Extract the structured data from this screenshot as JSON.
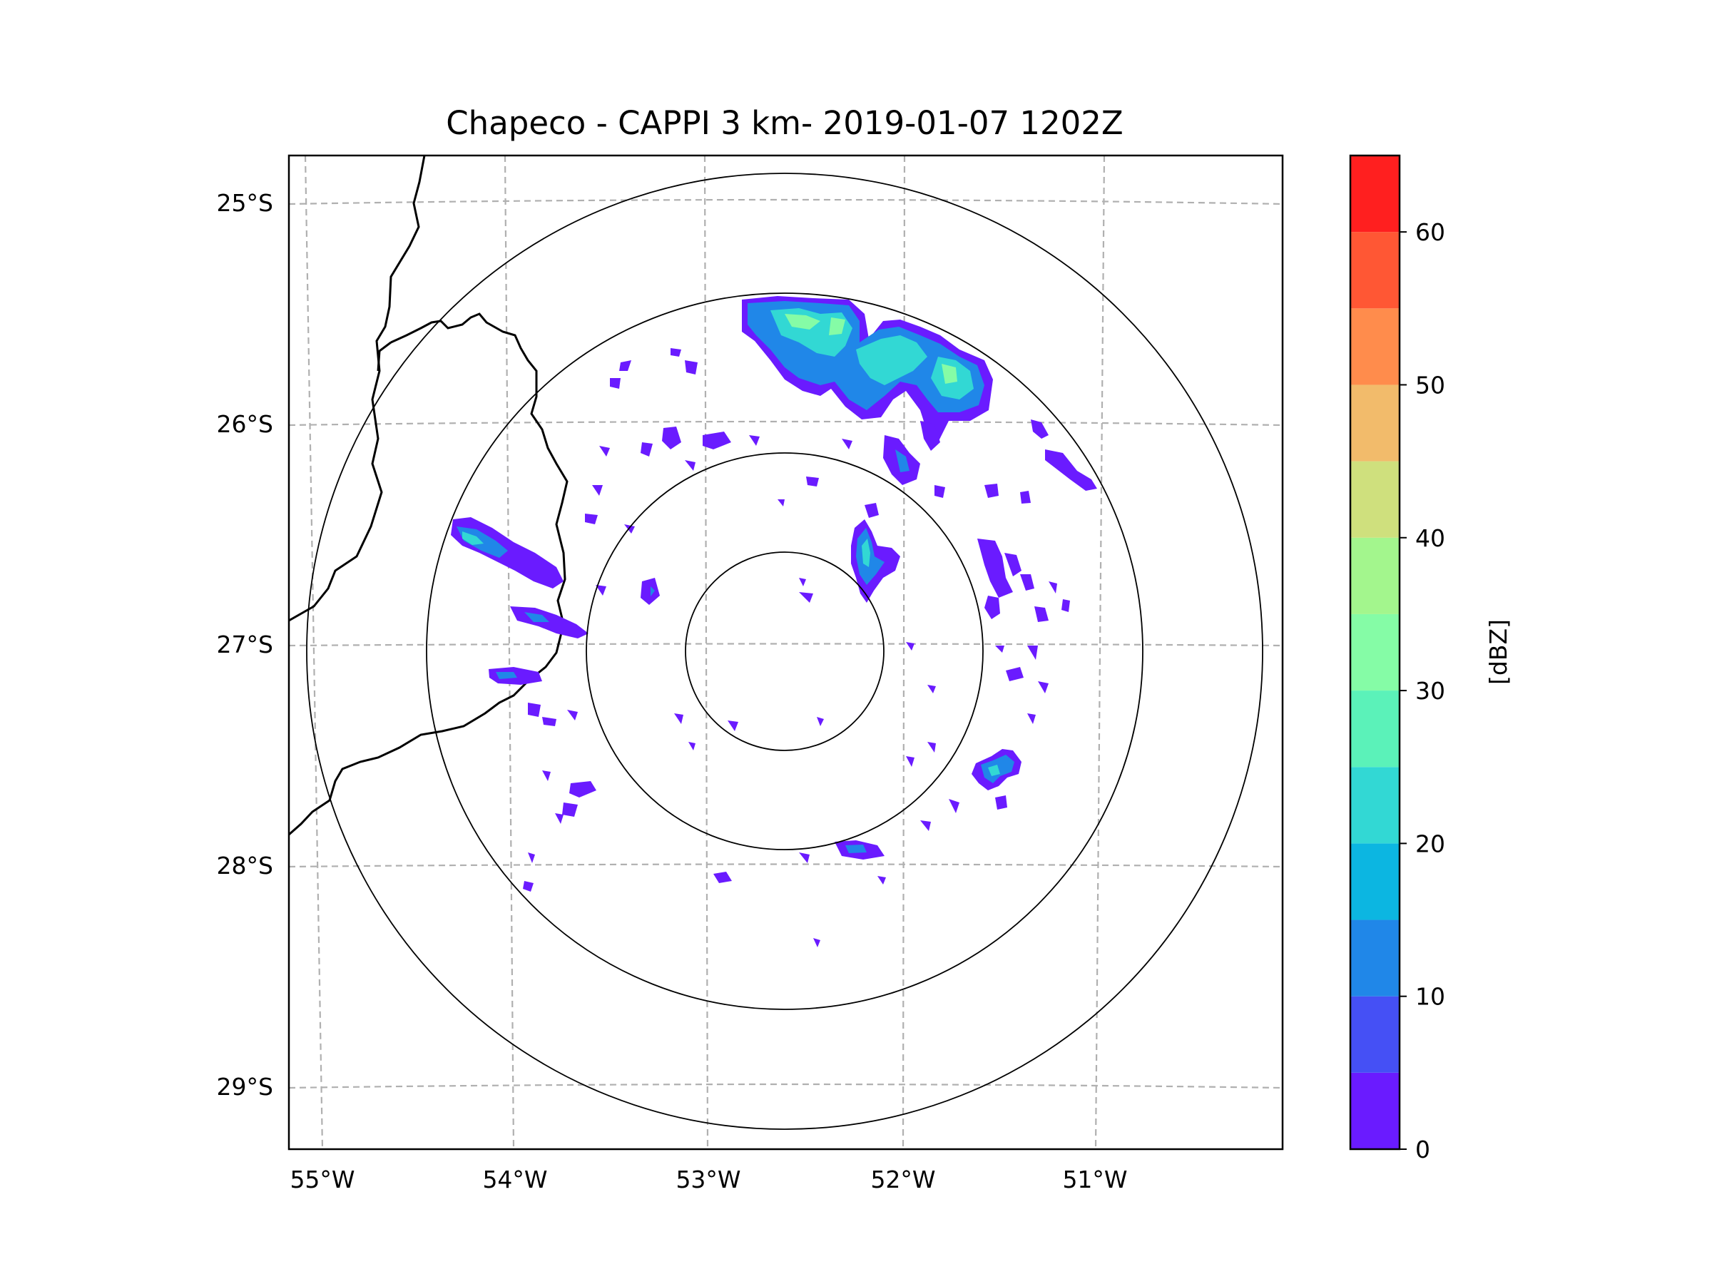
{
  "title": "Chapeco - CAPPI 3 km- 2019-01-07 1202Z",
  "map": {
    "lon_ticks": [
      "55°W",
      "54°W",
      "53°W",
      "52°W",
      "51°W"
    ],
    "lat_ticks": [
      "25°S",
      "26°S",
      "27°S",
      "28°S",
      "29°S"
    ],
    "gridlines": true,
    "range_rings": 4,
    "radar_site": "Chapeco"
  },
  "colorbar": {
    "label": "[dBZ]",
    "ticks": [
      "0",
      "10",
      "20",
      "30",
      "40",
      "50",
      "60"
    ],
    "bounds": [
      0,
      65
    ],
    "step": 5,
    "colors": [
      "#6a1bff",
      "#4550f5",
      "#2087e8",
      "#0cb6e1",
      "#32d8d4",
      "#5bf2b9",
      "#85fca6",
      "#a3f68d",
      "#cfe07d",
      "#f2bb6b",
      "#ff8c4c",
      "#ff5734",
      "#ff1f1f"
    ]
  },
  "colors": {
    "grid": "#b0b0b0",
    "rings": "#000000",
    "coast": "#000000"
  }
}
